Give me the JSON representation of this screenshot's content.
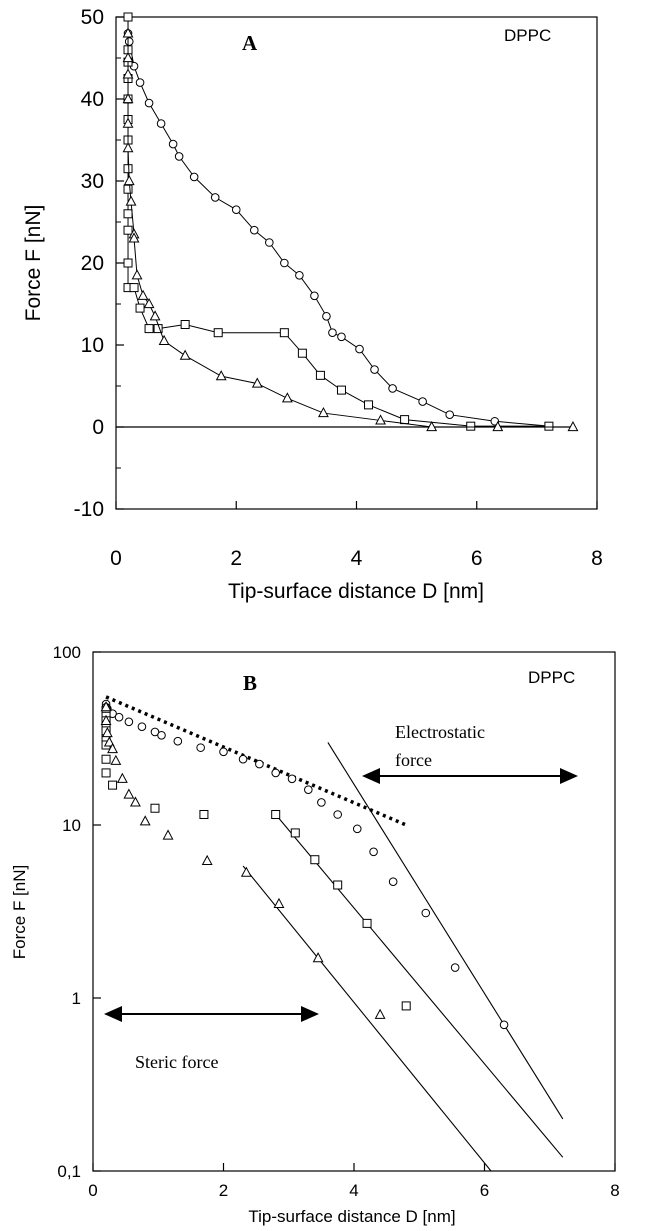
{
  "chart_data": [
    {
      "panel": "A",
      "type": "line",
      "tag": "DPPC",
      "xlabel": "Tip-surface distance D [nm]",
      "ylabel": "Force F [nN]",
      "xlim": [
        0,
        8
      ],
      "ylim": [
        -10,
        50
      ],
      "xticks": [
        "0",
        "2",
        "4",
        "6",
        "8"
      ],
      "yticks": [
        "-10",
        "0",
        "10",
        "20",
        "30",
        "40",
        "50"
      ],
      "grid": false,
      "series": [
        {
          "marker": "circle",
          "x": [
            0.2,
            0.2,
            0.22,
            0.3,
            0.4,
            0.55,
            0.75,
            0.95,
            1.05,
            1.3,
            1.65,
            2.0,
            2.3,
            2.55,
            2.8,
            3.05,
            3.3,
            3.5,
            3.6,
            3.75,
            4.05,
            4.3,
            4.6,
            5.1,
            5.55,
            6.3,
            7.2
          ],
          "y": [
            50,
            48,
            47,
            44,
            42,
            39.5,
            37,
            34.5,
            33,
            30.5,
            28,
            26.5,
            24,
            22.5,
            20,
            18.5,
            16,
            13.5,
            11.5,
            11,
            9.5,
            7,
            4.7,
            3.1,
            1.5,
            0.7,
            0.1
          ]
        },
        {
          "marker": "square",
          "x": [
            0.2,
            0.2,
            0.2,
            0.2,
            0.2,
            0.2,
            0.2,
            0.2,
            0.2,
            0.2,
            0.2,
            0.2,
            0.2,
            0.3,
            0.4,
            0.55,
            0.7,
            1.15,
            1.7,
            2.8,
            3.1,
            3.4,
            3.75,
            4.2,
            4.8,
            5.9,
            7.2
          ],
          "y": [
            50,
            46,
            44.5,
            42.5,
            40,
            37.5,
            35,
            31.5,
            29,
            26,
            24,
            20,
            17,
            17,
            14.5,
            12,
            12,
            12.5,
            11.5,
            11.5,
            9,
            6.3,
            4.5,
            2.7,
            0.9,
            0.1,
            0.1
          ]
        },
        {
          "marker": "triangle",
          "x": [
            0.2,
            0.2,
            0.2,
            0.2,
            0.2,
            0.2,
            0.22,
            0.25,
            0.3,
            0.3,
            0.35,
            0.45,
            0.55,
            0.65,
            0.8,
            1.15,
            1.75,
            2.35,
            2.85,
            3.45,
            4.4,
            5.25,
            6.35,
            7.6
          ],
          "y": [
            48,
            45,
            43,
            40,
            37,
            34,
            30,
            27.5,
            23.5,
            23,
            18.5,
            16,
            15,
            13.5,
            10.5,
            8.7,
            6.2,
            5.3,
            3.5,
            1.7,
            0.8,
            0,
            0,
            0
          ]
        }
      ]
    },
    {
      "panel": "B",
      "type": "scatter",
      "tag": "DPPC",
      "xlabel": "Tip-surface distance D [nm]",
      "ylabel": "Force F [nN]",
      "xlim": [
        0,
        8
      ],
      "ylim": [
        0.1,
        100
      ],
      "yscale": "log",
      "xticks": [
        "0",
        "2",
        "4",
        "6",
        "8"
      ],
      "yticks": [
        "0,1",
        "1",
        "10",
        "100"
      ],
      "grid": false,
      "annotations": {
        "electrostatic": "Electrostatic force",
        "electrostatic_line1": "Electrostatic",
        "electrostatic_line2": "force",
        "steric": "Steric force"
      },
      "series": [
        {
          "marker": "circle",
          "x": [
            0.2,
            0.2,
            0.22,
            0.3,
            0.4,
            0.55,
            0.75,
            0.95,
            1.05,
            1.3,
            1.65,
            2.0,
            2.3,
            2.55,
            2.8,
            3.05,
            3.3,
            3.5,
            3.75,
            4.05,
            4.3,
            4.6,
            5.1,
            5.55,
            6.3
          ],
          "y": [
            50,
            48,
            47,
            44,
            42,
            39.5,
            37,
            34.5,
            33,
            30.5,
            28,
            26.5,
            24,
            22.5,
            20,
            18.5,
            16,
            13.5,
            11.5,
            9.5,
            7,
            4.7,
            3.1,
            1.5,
            0.7
          ]
        },
        {
          "marker": "square",
          "x": [
            0.2,
            0.2,
            0.2,
            0.2,
            0.2,
            0.2,
            0.2,
            0.2,
            0.2,
            0.3,
            0.95,
            1.7,
            2.8,
            3.1,
            3.4,
            3.75,
            4.2,
            4.8
          ],
          "y": [
            46,
            42.5,
            40,
            37.5,
            35,
            31.5,
            29,
            24,
            20,
            17,
            12.5,
            11.5,
            11.5,
            9,
            6.3,
            4.5,
            2.7,
            0.9
          ]
        },
        {
          "marker": "triangle",
          "x": [
            0.2,
            0.2,
            0.22,
            0.25,
            0.3,
            0.35,
            0.45,
            0.55,
            0.65,
            0.8,
            1.15,
            1.75,
            2.35,
            2.85,
            3.45,
            4.4
          ],
          "y": [
            48,
            40,
            34,
            30,
            27.5,
            23.5,
            18.5,
            15,
            13.5,
            10.5,
            8.7,
            6.2,
            5.3,
            3.5,
            1.7,
            0.8
          ]
        }
      ],
      "fit_lines": [
        {
          "style": "dotted",
          "x": [
            0.2,
            4.8
          ],
          "y": [
            55,
            10
          ]
        },
        {
          "style": "solid",
          "x": [
            3.6,
            7.2
          ],
          "y": [
            30,
            0.2
          ]
        },
        {
          "style": "solid",
          "x": [
            2.8,
            7.2
          ],
          "y": [
            11.5,
            0.12
          ]
        },
        {
          "style": "solid",
          "x": [
            2.3,
            6.1
          ],
          "y": [
            5.8,
            0.1
          ]
        }
      ]
    }
  ]
}
